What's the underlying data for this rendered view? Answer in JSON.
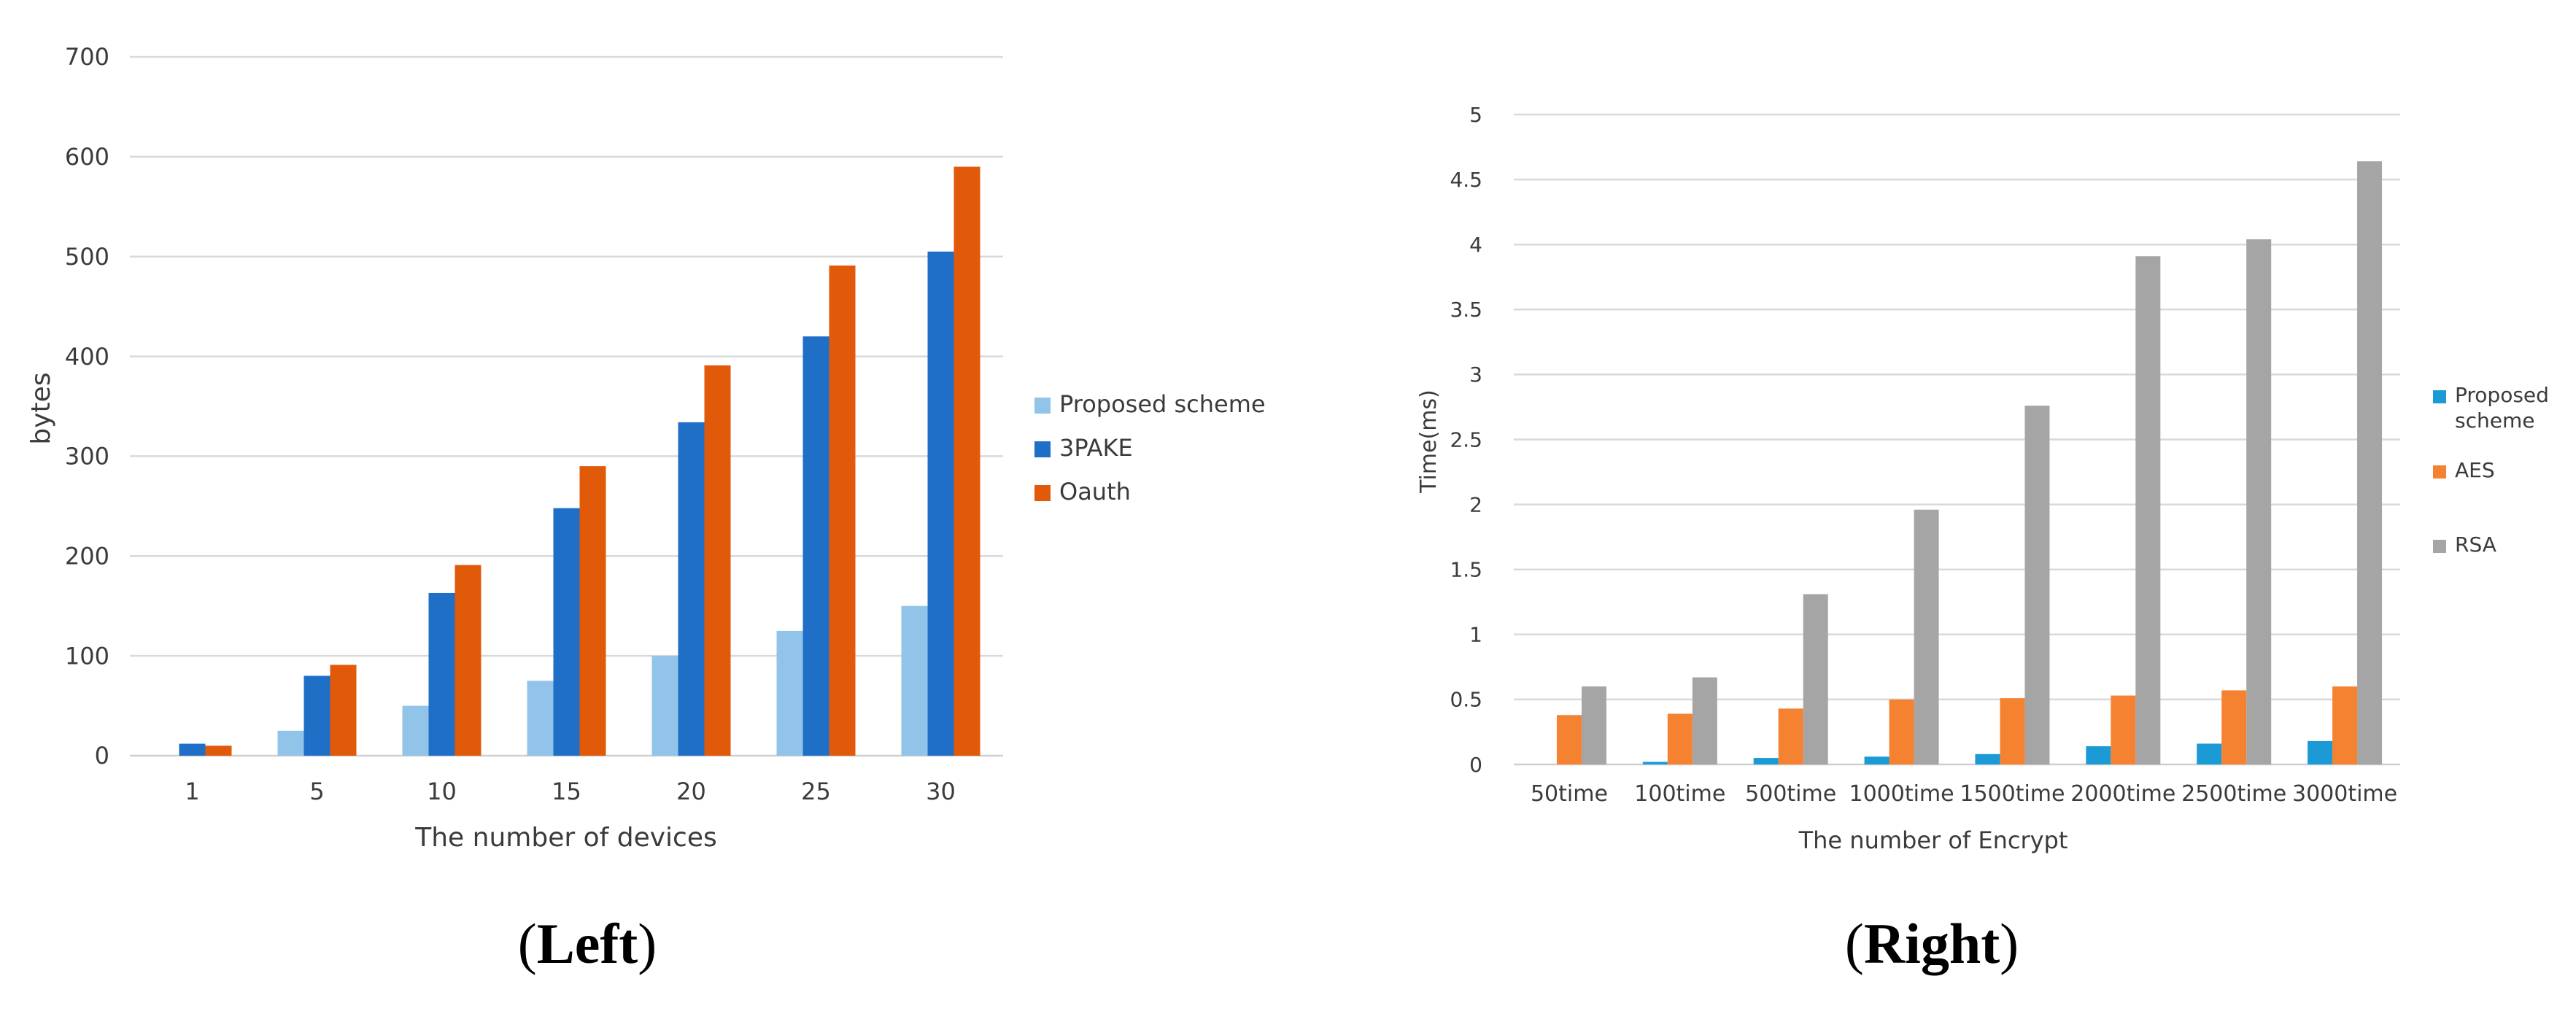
{
  "figure": {
    "panels": [
      {
        "caption_open": "(",
        "caption_word": "Left",
        "caption_close": ")"
      },
      {
        "caption_open": "(",
        "caption_word": "Right",
        "caption_close": ")"
      }
    ]
  },
  "chart_data": [
    {
      "type": "bar",
      "title": "",
      "xlabel": "The number of devices",
      "ylabel": "bytes",
      "ylim": [
        0,
        700
      ],
      "yticks": [
        "0",
        "100",
        "200",
        "300",
        "400",
        "500",
        "600",
        "700"
      ],
      "categories": [
        "1",
        "5",
        "10",
        "15",
        "20",
        "25",
        "30"
      ],
      "series": [
        {
          "name": "Proposed scheme",
          "color": "#92c4e9",
          "values": [
            0,
            25,
            50,
            75,
            100,
            125,
            150
          ]
        },
        {
          "name": "3PAKE",
          "color": "#1f6fc6",
          "values": [
            12,
            80,
            163,
            248,
            334,
            420,
            505
          ]
        },
        {
          "name": "Oauth",
          "color": "#e15a0a",
          "values": [
            10,
            91,
            191,
            290,
            391,
            491,
            590
          ]
        }
      ],
      "legend_position": "right",
      "grid": true
    },
    {
      "type": "bar",
      "title": "",
      "xlabel": "The number of Encrypt",
      "ylabel": "Time(ms)",
      "ylim": [
        0,
        5
      ],
      "yticks": [
        "0",
        "0.5",
        "1",
        "1.5",
        "2",
        "2.5",
        "3",
        "3.5",
        "4",
        "4.5",
        "5"
      ],
      "categories": [
        "50time",
        "100time",
        "500time",
        "1000time",
        "1500time",
        "2000time",
        "2500time",
        "3000time"
      ],
      "series": [
        {
          "name": "Proposed scheme",
          "color": "#1b9ad6",
          "values": [
            0.0,
            0.02,
            0.05,
            0.06,
            0.08,
            0.14,
            0.16,
            0.18
          ]
        },
        {
          "name": "AES",
          "color": "#f58231",
          "values": [
            0.38,
            0.39,
            0.43,
            0.5,
            0.51,
            0.53,
            0.57,
            0.6
          ]
        },
        {
          "name": "RSA",
          "color": "#a5a5a5",
          "values": [
            0.6,
            0.67,
            1.31,
            1.96,
            2.76,
            3.91,
            4.04,
            4.64
          ]
        }
      ],
      "legend_position": "right",
      "grid": true
    }
  ]
}
